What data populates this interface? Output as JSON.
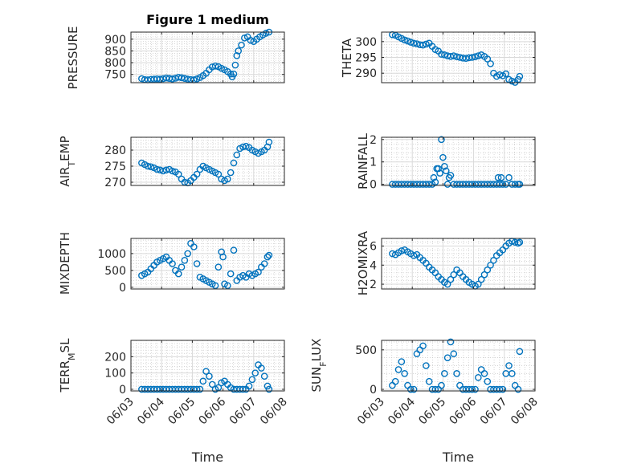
{
  "figure": {
    "title": "Figure 1 medium",
    "marker_color": "#0072BD",
    "x_label": "Time",
    "x_tick_labels": [
      "06/03",
      "06/04",
      "06/05",
      "06/06",
      "06/07",
      "06/08"
    ]
  },
  "chart_data": [
    {
      "id": "pressure",
      "type": "scatter",
      "ylabel": "PRESSURE",
      "title": "Figure 1 medium",
      "xlim": [
        3.0,
        8.0
      ],
      "ylim": [
        715,
        930
      ],
      "yticks": [
        750,
        800,
        850,
        900
      ],
      "grid": true,
      "x": [
        3.35,
        3.45,
        3.55,
        3.65,
        3.75,
        3.85,
        3.95,
        4.05,
        4.15,
        4.25,
        4.35,
        4.45,
        4.55,
        4.65,
        4.75,
        4.85,
        4.95,
        5.05,
        5.15,
        5.25,
        5.35,
        5.45,
        5.55,
        5.65,
        5.75,
        5.85,
        5.95,
        6.05,
        6.15,
        6.25,
        6.3,
        6.35,
        6.4,
        6.45,
        6.5,
        6.6,
        6.7,
        6.8,
        6.9,
        7.0,
        7.1,
        7.2,
        7.3,
        7.4,
        7.5
      ],
      "y": [
        732,
        728,
        727,
        729,
        730,
        731,
        730,
        732,
        735,
        733,
        731,
        734,
        738,
        736,
        733,
        730,
        728,
        727,
        731,
        737,
        745,
        755,
        770,
        782,
        786,
        783,
        776,
        770,
        762,
        752,
        740,
        752,
        790,
        830,
        850,
        875,
        905,
        910,
        895,
        890,
        900,
        910,
        918,
        925,
        930
      ]
    },
    {
      "id": "theta",
      "type": "scatter",
      "ylabel": "THETA",
      "xlim": [
        3.0,
        8.0
      ],
      "ylim": [
        287,
        303
      ],
      "yticks": [
        290,
        295,
        300
      ],
      "grid": true,
      "x": [
        3.35,
        3.45,
        3.55,
        3.65,
        3.75,
        3.85,
        3.95,
        4.05,
        4.15,
        4.25,
        4.35,
        4.45,
        4.55,
        4.65,
        4.75,
        4.85,
        4.95,
        5.05,
        5.15,
        5.25,
        5.35,
        5.45,
        5.55,
        5.65,
        5.75,
        5.85,
        5.95,
        6.05,
        6.15,
        6.25,
        6.35,
        6.45,
        6.55,
        6.65,
        6.75,
        6.85,
        6.95,
        7.05,
        7.15,
        7.25,
        7.35,
        7.45,
        7.5
      ],
      "y": [
        302.2,
        302,
        301.5,
        301,
        300.5,
        300.2,
        299.8,
        299.5,
        299.3,
        299,
        298.9,
        299.2,
        299.5,
        298.5,
        297.5,
        297,
        296,
        295.8,
        295.5,
        295.3,
        295.5,
        295.2,
        295,
        294.8,
        294.7,
        294.9,
        295,
        295.2,
        295.5,
        295.8,
        295.3,
        294.5,
        293,
        290,
        289,
        289.5,
        289.2,
        289.8,
        288,
        287.5,
        287.1,
        288,
        289
      ]
    },
    {
      "id": "air_temp",
      "type": "scatter",
      "ylabel": "AIR_TEMP",
      "xlim": [
        3.0,
        8.0
      ],
      "ylim": [
        269,
        284
      ],
      "yticks": [
        270,
        275,
        280
      ],
      "grid": true,
      "x": [
        3.35,
        3.45,
        3.55,
        3.65,
        3.75,
        3.85,
        3.95,
        4.05,
        4.15,
        4.25,
        4.35,
        4.45,
        4.55,
        4.65,
        4.75,
        4.85,
        4.95,
        5.05,
        5.15,
        5.25,
        5.35,
        5.45,
        5.55,
        5.65,
        5.75,
        5.85,
        5.95,
        6.05,
        6.15,
        6.25,
        6.35,
        6.45,
        6.55,
        6.65,
        6.75,
        6.85,
        6.95,
        7.05,
        7.15,
        7.25,
        7.35,
        7.45,
        7.5
      ],
      "y": [
        276,
        275.5,
        275,
        274.8,
        274.5,
        274,
        273.8,
        273.5,
        273.8,
        274,
        273.5,
        273.2,
        272.5,
        271,
        270,
        269.8,
        270.5,
        271.5,
        272.5,
        274,
        275,
        274.5,
        274,
        273.5,
        273,
        272.5,
        271,
        270.5,
        271,
        273,
        276,
        278.5,
        280.5,
        281,
        281.2,
        280.8,
        280,
        279.5,
        279,
        279.5,
        280,
        281,
        282.5
      ]
    },
    {
      "id": "rainfall",
      "type": "scatter",
      "ylabel": "RAINFALL",
      "xlim": [
        3.0,
        8.0
      ],
      "ylim": [
        -0.05,
        2.1
      ],
      "yticks": [
        0,
        1,
        2
      ],
      "grid": true,
      "x": [
        3.35,
        3.45,
        3.55,
        3.65,
        3.75,
        3.85,
        3.95,
        4.05,
        4.15,
        4.25,
        4.35,
        4.45,
        4.55,
        4.65,
        4.7,
        4.75,
        4.8,
        4.85,
        4.9,
        4.95,
        5.0,
        5.05,
        5.1,
        5.15,
        5.2,
        5.25,
        5.35,
        5.45,
        5.55,
        5.65,
        5.75,
        5.85,
        5.95,
        6.05,
        6.15,
        6.25,
        6.35,
        6.45,
        6.55,
        6.65,
        6.75,
        6.8,
        6.85,
        6.9,
        6.95,
        7.05,
        7.15,
        7.25,
        7.35,
        7.45,
        7.5
      ],
      "y": [
        0,
        0,
        0,
        0,
        0,
        0,
        0,
        0,
        0,
        0,
        0,
        0,
        0,
        0,
        0.3,
        0.1,
        0.7,
        0.7,
        0.5,
        2.0,
        1.2,
        0.8,
        0.6,
        0,
        0.3,
        0.4,
        0,
        0,
        0,
        0,
        0,
        0,
        0,
        0,
        0,
        0,
        0,
        0,
        0,
        0,
        0,
        0.3,
        0,
        0.3,
        0,
        0,
        0.3,
        0,
        0,
        0,
        0
      ]
    },
    {
      "id": "mixdepth",
      "type": "scatter",
      "ylabel": "MIXDEPTH",
      "xlim": [
        3.0,
        8.0
      ],
      "ylim": [
        -50,
        1450
      ],
      "yticks": [
        0,
        500,
        1000
      ],
      "grid": true,
      "x": [
        3.35,
        3.45,
        3.55,
        3.65,
        3.75,
        3.85,
        3.95,
        4.05,
        4.15,
        4.25,
        4.35,
        4.45,
        4.55,
        4.65,
        4.75,
        4.85,
        4.95,
        5.05,
        5.15,
        5.25,
        5.35,
        5.45,
        5.55,
        5.65,
        5.75,
        5.85,
        5.95,
        6.0,
        6.05,
        6.15,
        6.25,
        6.35,
        6.45,
        6.55,
        6.65,
        6.75,
        6.85,
        6.95,
        7.05,
        7.15,
        7.25,
        7.35,
        7.45,
        7.5
      ],
      "y": [
        350,
        400,
        450,
        550,
        650,
        750,
        800,
        850,
        900,
        800,
        700,
        500,
        400,
        600,
        800,
        1000,
        1300,
        1200,
        700,
        300,
        250,
        200,
        150,
        100,
        50,
        600,
        1050,
        900,
        100,
        50,
        400,
        1100,
        200,
        300,
        350,
        300,
        400,
        350,
        400,
        450,
        600,
        700,
        900,
        950
      ]
    },
    {
      "id": "h2omixra",
      "type": "scatter",
      "ylabel": "H2OMIXRA",
      "xlim": [
        3.0,
        8.0
      ],
      "ylim": [
        1.5,
        6.8
      ],
      "yticks": [
        2,
        4,
        6
      ],
      "grid": true,
      "x": [
        3.35,
        3.45,
        3.55,
        3.65,
        3.75,
        3.85,
        3.95,
        4.05,
        4.15,
        4.25,
        4.35,
        4.45,
        4.55,
        4.65,
        4.75,
        4.85,
        4.95,
        5.05,
        5.15,
        5.25,
        5.35,
        5.45,
        5.55,
        5.65,
        5.75,
        5.85,
        5.95,
        6.05,
        6.15,
        6.25,
        6.35,
        6.45,
        6.55,
        6.65,
        6.75,
        6.85,
        6.95,
        7.05,
        7.15,
        7.25,
        7.35,
        7.45,
        7.5
      ],
      "y": [
        5.2,
        5.1,
        5.3,
        5.5,
        5.6,
        5.4,
        5.2,
        5.0,
        5.1,
        4.8,
        4.5,
        4.2,
        3.8,
        3.5,
        3.2,
        2.8,
        2.5,
        2.2,
        2.0,
        2.5,
        3.0,
        3.5,
        3.2,
        2.8,
        2.5,
        2.2,
        2.0,
        1.8,
        2.0,
        2.5,
        3.0,
        3.5,
        4.0,
        4.5,
        5.0,
        5.3,
        5.6,
        6.0,
        6.3,
        6.5,
        6.4,
        6.3,
        6.4
      ]
    },
    {
      "id": "terr_msl",
      "type": "scatter",
      "ylabel": "TERR_MSL",
      "xlim": [
        3.0,
        8.0
      ],
      "ylim": [
        -10,
        300
      ],
      "yticks": [
        0,
        100,
        200
      ],
      "grid": true,
      "x": [
        3.35,
        3.45,
        3.55,
        3.65,
        3.75,
        3.85,
        3.95,
        4.05,
        4.15,
        4.25,
        4.35,
        4.45,
        4.55,
        4.65,
        4.75,
        4.85,
        4.95,
        5.05,
        5.15,
        5.25,
        5.35,
        5.45,
        5.55,
        5.65,
        5.75,
        5.85,
        5.95,
        6.05,
        6.15,
        6.25,
        6.35,
        6.45,
        6.55,
        6.65,
        6.75,
        6.85,
        6.95,
        7.05,
        7.15,
        7.25,
        7.35,
        7.45,
        7.5
      ],
      "y": [
        0,
        0,
        0,
        0,
        0,
        0,
        0,
        0,
        0,
        0,
        0,
        0,
        0,
        0,
        0,
        0,
        0,
        0,
        0,
        0,
        50,
        110,
        80,
        30,
        0,
        10,
        40,
        50,
        30,
        10,
        0,
        0,
        0,
        0,
        0,
        20,
        60,
        100,
        150,
        130,
        80,
        20,
        0
      ]
    },
    {
      "id": "sun_flux",
      "type": "scatter",
      "ylabel": "SUN_FLUX",
      "xlim": [
        3.0,
        8.0
      ],
      "ylim": [
        -20,
        620
      ],
      "yticks": [
        0,
        500
      ],
      "grid": true,
      "x": [
        3.35,
        3.45,
        3.55,
        3.65,
        3.75,
        3.85,
        3.95,
        4.05,
        4.15,
        4.25,
        4.35,
        4.45,
        4.55,
        4.65,
        4.75,
        4.85,
        4.95,
        5.05,
        5.15,
        5.25,
        5.35,
        5.45,
        5.55,
        5.65,
        5.75,
        5.85,
        5.95,
        6.05,
        6.15,
        6.25,
        6.35,
        6.45,
        6.55,
        6.65,
        6.75,
        6.85,
        6.95,
        7.05,
        7.15,
        7.25,
        7.35,
        7.45,
        7.5
      ],
      "y": [
        50,
        100,
        250,
        350,
        200,
        50,
        0,
        0,
        450,
        500,
        550,
        300,
        100,
        0,
        0,
        0,
        50,
        200,
        400,
        600,
        450,
        200,
        50,
        0,
        0,
        0,
        0,
        0,
        150,
        250,
        200,
        100,
        0,
        0,
        0,
        0,
        0,
        200,
        300,
        200,
        50,
        0,
        480
      ]
    }
  ]
}
